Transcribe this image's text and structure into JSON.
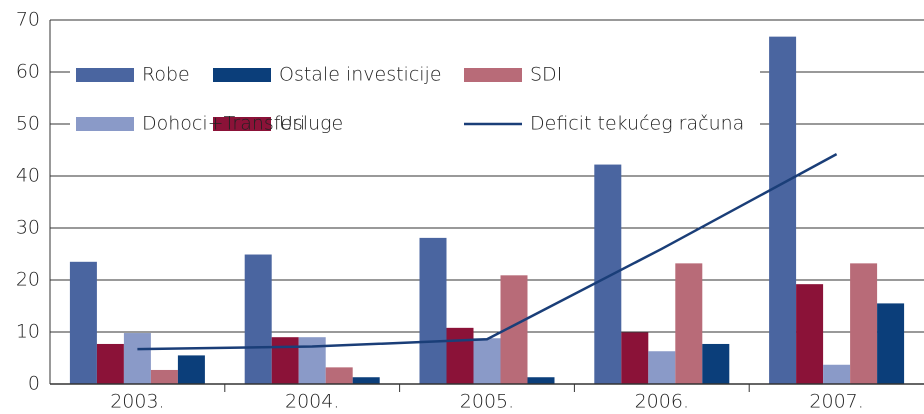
{
  "chart_data": {
    "type": "bar",
    "categories": [
      "2003.",
      "2004.",
      "2005.",
      "2006.",
      "2007."
    ],
    "series": [
      {
        "name": "Robe",
        "color": "#4a65a0",
        "values": [
          23.5,
          24.9,
          28.1,
          42.2,
          66.8
        ]
      },
      {
        "name": "Usluge",
        "color": "#8b1238",
        "values": [
          7.7,
          9.0,
          10.8,
          9.9,
          19.2
        ]
      },
      {
        "name": "Dohoci+Transferi",
        "color": "#8a9ac8",
        "values": [
          9.8,
          9.0,
          8.8,
          6.3,
          3.7
        ]
      },
      {
        "name": "SDI",
        "color": "#b86b78",
        "values": [
          2.7,
          3.2,
          20.9,
          23.2,
          23.2
        ]
      },
      {
        "name": "Ostale investicije",
        "color": "#0b3e7a",
        "values": [
          5.5,
          1.3,
          1.3,
          7.7,
          15.5
        ]
      },
      {
        "name": "Deficit tekućeg računa",
        "color": "#1a3e78",
        "kind": "line",
        "values": [
          6.7,
          7.2,
          8.6,
          26.0,
          44.2
        ]
      }
    ],
    "ylim": [
      0,
      70
    ],
    "yticks": [
      0,
      10,
      20,
      30,
      40,
      50,
      60,
      70
    ],
    "grid": true
  }
}
